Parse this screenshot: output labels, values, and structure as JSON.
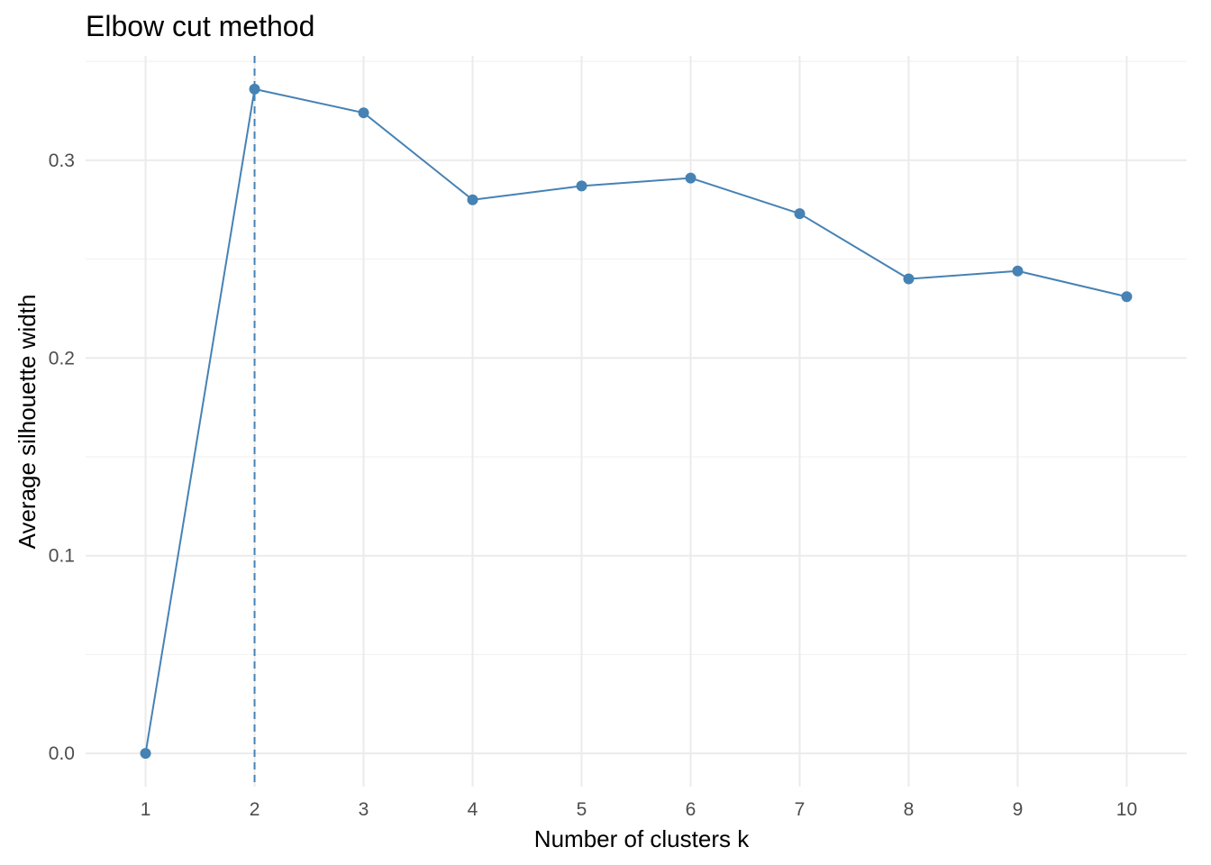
{
  "chart_data": {
    "type": "line",
    "title": "Elbow cut method",
    "xlabel": "Number of clusters k",
    "ylabel": "Average silhouette width",
    "x": [
      1,
      2,
      3,
      4,
      5,
      6,
      7,
      8,
      9,
      10
    ],
    "x_tick_labels": [
      "1",
      "2",
      "3",
      "4",
      "5",
      "6",
      "7",
      "8",
      "9",
      "10"
    ],
    "y_ticks": [
      0.0,
      0.1,
      0.2,
      0.3
    ],
    "y_tick_labels": [
      "0.0",
      "0.1",
      "0.2",
      "0.3"
    ],
    "series": [
      {
        "values": [
          0.0,
          0.336,
          0.324,
          0.28,
          0.287,
          0.291,
          0.273,
          0.24,
          0.244,
          0.231
        ],
        "color": "#4682B4"
      }
    ],
    "vline": {
      "x": 2,
      "style": "dashed",
      "color": "#4682B4"
    },
    "xlim": [
      0.45,
      10.55
    ],
    "ylim": [
      -0.0168,
      0.3528
    ],
    "grid": true,
    "legend": "none"
  }
}
